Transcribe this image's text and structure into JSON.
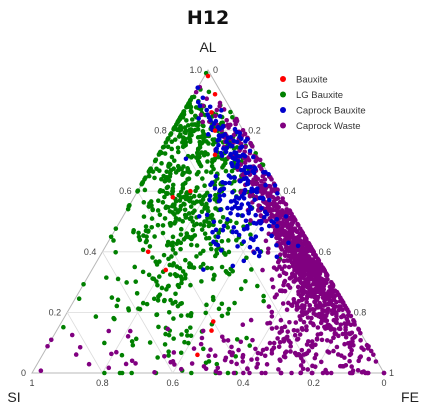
{
  "chart_data": {
    "type": "scatter",
    "subtype": "ternary",
    "title": "H12",
    "axes": {
      "a": {
        "title": "AL",
        "ticks": [
          "0",
          "0.2",
          "0.4",
          "0.6",
          "0.8",
          "1.0"
        ]
      },
      "b": {
        "title": "SI",
        "ticks": [
          "1",
          "0.8",
          "0.6",
          "0.4",
          "0.2",
          "0"
        ]
      },
      "c": {
        "title": "FE",
        "ticks": [
          "1",
          "0.8",
          "0.6",
          "0.4",
          "0.2",
          "0"
        ]
      }
    },
    "grid": true,
    "legend_position": "top-right",
    "series": [
      {
        "name": "Bauxite",
        "color": "#ff0000",
        "points": [
          [
            0.98,
            0.01,
            0.01
          ],
          [
            0.92,
            0.02,
            0.06
          ],
          [
            0.86,
            0.06,
            0.08
          ],
          [
            0.58,
            0.31,
            0.11
          ],
          [
            0.4,
            0.47,
            0.13
          ],
          [
            0.8,
            0.08,
            0.12
          ],
          [
            0.14,
            0.42,
            0.44
          ],
          [
            0.06,
            0.5,
            0.44
          ],
          [
            0.34,
            0.45,
            0.21
          ],
          [
            0.6,
            0.25,
            0.15
          ],
          [
            0.17,
            0.4,
            0.43
          ],
          [
            0.72,
            0.12,
            0.16
          ]
        ]
      },
      {
        "name": "LG Bauxite",
        "color": "#008000",
        "clusters": [
          {
            "center": [
              0.78,
              0.13,
              0.09
            ],
            "spread": [
              0.09,
              0.06
            ],
            "count": 260
          },
          {
            "center": [
              0.58,
              0.26,
              0.16
            ],
            "spread": [
              0.09,
              0.06
            ],
            "count": 210
          },
          {
            "center": [
              0.42,
              0.36,
              0.22
            ],
            "spread": [
              0.1,
              0.07
            ],
            "count": 130
          },
          {
            "center": [
              0.26,
              0.48,
              0.26
            ],
            "spread": [
              0.12,
              0.09
            ],
            "count": 80
          },
          {
            "center": [
              0.1,
              0.62,
              0.28
            ],
            "spread": [
              0.09,
              0.12
            ],
            "count": 40
          }
        ]
      },
      {
        "name": "Caprock Bauxite",
        "color": "#0000cc",
        "clusters": [
          {
            "center": [
              0.74,
              0.06,
              0.2
            ],
            "spread": [
              0.08,
              0.03
            ],
            "count": 80
          },
          {
            "center": [
              0.58,
              0.1,
              0.32
            ],
            "spread": [
              0.08,
              0.04
            ],
            "count": 90
          },
          {
            "center": [
              0.46,
              0.2,
              0.34
            ],
            "spread": [
              0.06,
              0.04
            ],
            "count": 40
          }
        ]
      },
      {
        "name": "Caprock Waste",
        "color": "#800080",
        "clusters": [
          {
            "center": [
              0.66,
              0.04,
              0.3
            ],
            "spread": [
              0.12,
              0.03
            ],
            "count": 120
          },
          {
            "center": [
              0.4,
              0.04,
              0.56
            ],
            "spread": [
              0.12,
              0.03
            ],
            "count": 620
          },
          {
            "center": [
              0.22,
              0.07,
              0.71
            ],
            "spread": [
              0.09,
              0.05
            ],
            "count": 260
          },
          {
            "center": [
              0.1,
              0.2,
              0.7
            ],
            "spread": [
              0.07,
              0.07
            ],
            "count": 110
          },
          {
            "center": [
              0.05,
              0.42,
              0.53
            ],
            "spread": [
              0.04,
              0.12
            ],
            "count": 55
          },
          {
            "center": [
              0.06,
              0.75,
              0.19
            ],
            "spread": [
              0.05,
              0.12
            ],
            "count": 20
          }
        ]
      }
    ]
  }
}
